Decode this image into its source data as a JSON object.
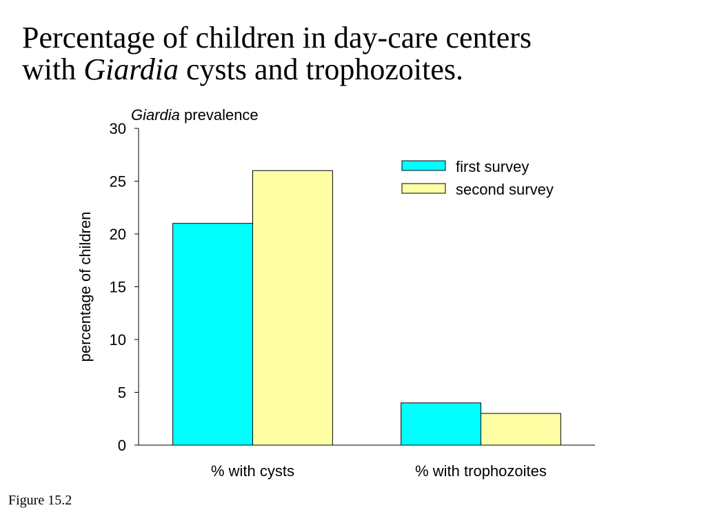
{
  "slide": {
    "title_line1": "Percentage of children in day-care centers",
    "title_line2_prefix": "with ",
    "title_line2_italic": "Giardia",
    "title_line2_suffix": " cysts and trophozoites.",
    "figure_label": "Figure 15.2"
  },
  "chart_data": {
    "type": "bar",
    "title_italic": "Giardia",
    "title_rest": " prevalence",
    "xlabel": "",
    "ylabel": "percentage of children",
    "ylim": [
      0,
      30
    ],
    "yticks": [
      0,
      5,
      10,
      15,
      20,
      25,
      30
    ],
    "categories": [
      "% with cysts",
      "% with trophozoites"
    ],
    "series": [
      {
        "name": "first survey",
        "color": "#00ffff",
        "values": [
          21,
          4
        ]
      },
      {
        "name": "second survey",
        "color": "#ffffa6",
        "values": [
          26,
          3
        ]
      }
    ],
    "grid": false,
    "legend_position": "top-right"
  }
}
